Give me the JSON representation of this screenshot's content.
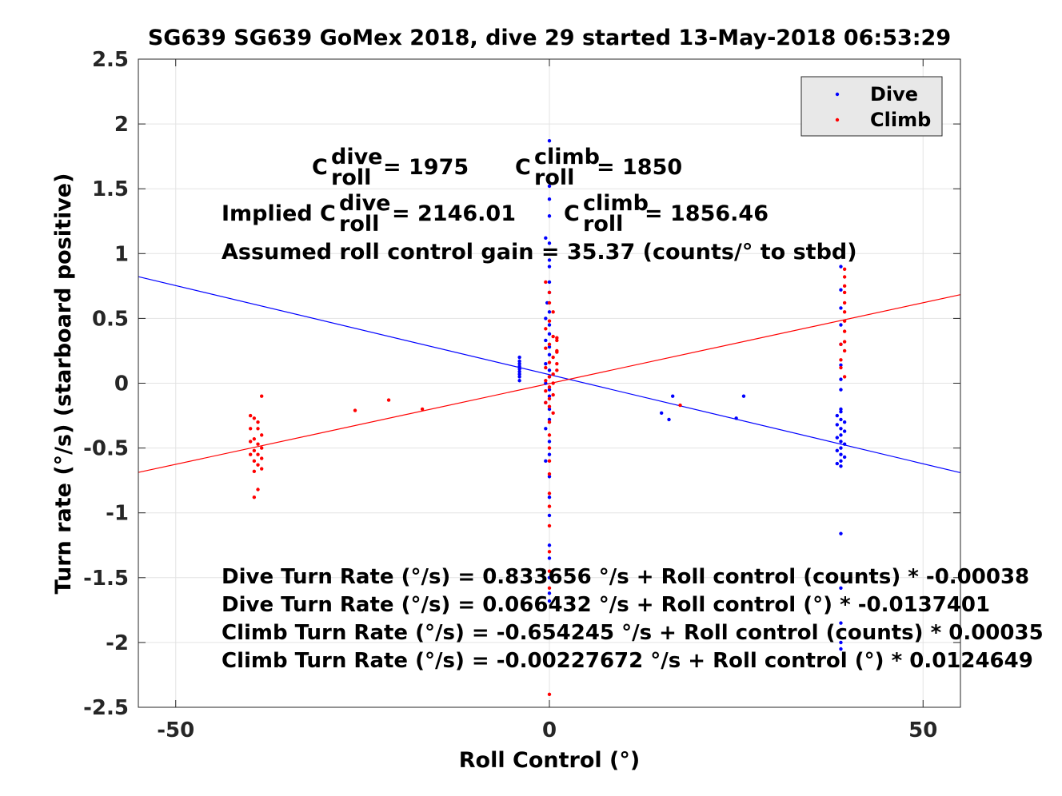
{
  "chart_data": {
    "type": "scatter",
    "title": "SG639 SG639 GoMex 2018, dive 29 started 13-May-2018 06:53:29",
    "xlabel": "Roll Control (°)",
    "ylabel": "Turn rate (°/s) (starboard positive)",
    "xlim": [
      -55,
      55
    ],
    "ylim": [
      -2.5,
      2.5
    ],
    "xticks": [
      -50,
      0,
      50
    ],
    "xtick_labels": [
      "-50",
      "0",
      "50"
    ],
    "yticks": [
      2.5,
      2,
      1.5,
      1,
      0.5,
      0,
      -0.5,
      -1,
      -1.5,
      -2,
      -2.5
    ],
    "ytick_labels": [
      "2.5",
      "2",
      "1.5",
      "1",
      "0.5",
      "0",
      "-0.5",
      "-1",
      "-1.5",
      "-2",
      "-2.5"
    ],
    "grid": true,
    "legend_location": "top-right",
    "series": [
      {
        "name": "Dive",
        "color": "#0000ff",
        "points": [
          [
            -4,
            0.2
          ],
          [
            -4,
            0.17
          ],
          [
            -4,
            0.15
          ],
          [
            -4,
            0.13
          ],
          [
            -4,
            0.11
          ],
          [
            -4,
            0.09
          ],
          [
            -4,
            0.07
          ],
          [
            -4,
            0.05
          ],
          [
            -4,
            0.02
          ],
          [
            0,
            1.87
          ],
          [
            0,
            1.52
          ],
          [
            0,
            1.42
          ],
          [
            0,
            1.29
          ],
          [
            -0.5,
            1.12
          ],
          [
            0,
            1.08
          ],
          [
            0,
            0.95
          ],
          [
            0,
            0.9
          ],
          [
            0,
            0.78
          ],
          [
            0,
            0.7
          ],
          [
            -0.3,
            0.62
          ],
          [
            0,
            0.55
          ],
          [
            -0.5,
            0.5
          ],
          [
            0,
            0.45
          ],
          [
            0,
            0.38
          ],
          [
            -0.5,
            0.33
          ],
          [
            0,
            0.28
          ],
          [
            0,
            0.22
          ],
          [
            -0.5,
            0.15
          ],
          [
            0,
            0.1
          ],
          [
            0,
            0.05
          ],
          [
            -0.5,
            0.0
          ],
          [
            0,
            -0.05
          ],
          [
            0,
            -0.1
          ],
          [
            -0.5,
            -0.15
          ],
          [
            0,
            -0.2
          ],
          [
            0,
            -0.28
          ],
          [
            -0.5,
            -0.35
          ],
          [
            0,
            -0.45
          ],
          [
            0,
            -0.55
          ],
          [
            -0.5,
            -0.6
          ],
          [
            0,
            -0.72
          ],
          [
            0,
            -0.88
          ],
          [
            0,
            -1.02
          ],
          [
            0,
            -1.25
          ],
          [
            0,
            -1.35
          ],
          [
            0,
            -1.5
          ],
          [
            0,
            -1.62
          ],
          [
            0,
            -1.68
          ],
          [
            15,
            -0.23
          ],
          [
            16,
            -0.28
          ],
          [
            16.5,
            -0.1
          ],
          [
            25,
            -0.27
          ],
          [
            26,
            -0.1
          ],
          [
            39,
            -0.2
          ],
          [
            39,
            -0.22
          ],
          [
            38.5,
            -0.25
          ],
          [
            39,
            -0.28
          ],
          [
            39.5,
            -0.3
          ],
          [
            38.5,
            -0.32
          ],
          [
            39,
            -0.35
          ],
          [
            39.5,
            -0.37
          ],
          [
            39,
            -0.4
          ],
          [
            38.5,
            -0.42
          ],
          [
            39,
            -0.45
          ],
          [
            39.5,
            -0.47
          ],
          [
            39,
            -0.5
          ],
          [
            38.5,
            -0.52
          ],
          [
            39,
            -0.55
          ],
          [
            39.5,
            -0.57
          ],
          [
            39,
            -0.6
          ],
          [
            38.5,
            -0.62
          ],
          [
            39,
            -0.64
          ],
          [
            39,
            0.9
          ],
          [
            39,
            0.72
          ],
          [
            39,
            0.58
          ],
          [
            39,
            0.45
          ],
          [
            39,
            0.3
          ],
          [
            39,
            0.14
          ],
          [
            39,
            0.03
          ],
          [
            39,
            -0.05
          ],
          [
            39,
            -1.16
          ],
          [
            39,
            -1.58
          ],
          [
            39,
            -1.85
          ],
          [
            39,
            -2.0
          ],
          [
            39,
            -2.05
          ]
        ]
      },
      {
        "name": "Climb",
        "color": "#ff0000",
        "points": [
          [
            -38.5,
            -0.1
          ],
          [
            -39,
            -0.3
          ],
          [
            -39.5,
            -0.27
          ],
          [
            -39,
            -0.35
          ],
          [
            -38.5,
            -0.4
          ],
          [
            -39.5,
            -0.43
          ],
          [
            -39,
            -0.47
          ],
          [
            -38.5,
            -0.5
          ],
          [
            -39.5,
            -0.52
          ],
          [
            -39,
            -0.55
          ],
          [
            -38.5,
            -0.58
          ],
          [
            -39.5,
            -0.6
          ],
          [
            -39,
            -0.63
          ],
          [
            -38.5,
            -0.66
          ],
          [
            -39.5,
            -0.68
          ],
          [
            -39,
            -0.82
          ],
          [
            -39.5,
            -0.88
          ],
          [
            -40,
            -0.25
          ],
          [
            -40,
            -0.35
          ],
          [
            -40,
            -0.45
          ],
          [
            -40,
            -0.55
          ],
          [
            -26,
            -0.21
          ],
          [
            -21.5,
            -0.13
          ],
          [
            -17,
            -0.2
          ],
          [
            -0.5,
            0.78
          ],
          [
            0,
            0.7
          ],
          [
            0,
            0.62
          ],
          [
            0.5,
            0.55
          ],
          [
            0,
            0.48
          ],
          [
            -0.5,
            0.42
          ],
          [
            0.5,
            0.36
          ],
          [
            1,
            0.33
          ],
          [
            0,
            0.3
          ],
          [
            -0.5,
            0.27
          ],
          [
            1,
            0.24
          ],
          [
            0.5,
            0.2
          ],
          [
            0,
            0.16
          ],
          [
            -0.5,
            0.12
          ],
          [
            1,
            0.1
          ],
          [
            0.5,
            0.07
          ],
          [
            0,
            0.05
          ],
          [
            -0.5,
            0.02
          ],
          [
            0.5,
            0.0
          ],
          [
            0,
            -0.03
          ],
          [
            -0.5,
            -0.06
          ],
          [
            0.5,
            -0.09
          ],
          [
            0,
            -0.12
          ],
          [
            -0.5,
            -0.15
          ],
          [
            0,
            -0.18
          ],
          [
            0.5,
            -0.23
          ],
          [
            0,
            -0.3
          ],
          [
            0,
            -0.4
          ],
          [
            0,
            -0.5
          ],
          [
            0,
            -0.6
          ],
          [
            0,
            -0.7
          ],
          [
            0,
            -0.85
          ],
          [
            0,
            -0.95
          ],
          [
            0,
            -1.1
          ],
          [
            0,
            -1.3
          ],
          [
            0,
            -1.45
          ],
          [
            0,
            -1.58
          ],
          [
            0,
            -2.4
          ],
          [
            1,
            0.35
          ],
          [
            1,
            0.25
          ],
          [
            1,
            0.15
          ],
          [
            17.5,
            -0.17
          ],
          [
            39.5,
            0.88
          ],
          [
            39.5,
            0.82
          ],
          [
            39.5,
            0.75
          ],
          [
            39.5,
            0.7
          ],
          [
            39.5,
            0.62
          ],
          [
            39.5,
            0.55
          ],
          [
            39.5,
            0.48
          ],
          [
            39.5,
            0.4
          ],
          [
            39.5,
            0.32
          ],
          [
            39.5,
            0.25
          ],
          [
            39,
            0.18
          ],
          [
            39,
            0.12
          ],
          [
            39.5,
            0.05
          ],
          [
            39,
            0.3
          ]
        ]
      },
      {
        "name": "",
        "type": "line",
        "color": "#0000ff",
        "x": [
          -55,
          55
        ],
        "y": [
          0.822,
          -0.69
        ]
      },
      {
        "name": "",
        "type": "line",
        "color": "#ff0000",
        "x": [
          -55,
          55
        ],
        "y": [
          -0.688,
          0.683
        ]
      }
    ],
    "annotations": {
      "c_roll_dive": "= 1975",
      "c_roll_climb": "= 1850",
      "implied_prefix": "Implied C",
      "implied_dive": "= 2146.01",
      "implied_climb": "= 1856.46",
      "gain": "Assumed roll control gain = 35.37 (counts/° to stbd)",
      "eq1": "Dive Turn Rate (°/s) = 0.833656 °/s + Roll control (counts) * -0.00038",
      "eq2": "Dive Turn Rate (°/s) = 0.066432 °/s + Roll control (°) * -0.0137401",
      "eq3": "Climb Turn Rate (°/s) = -0.654245 °/s + Roll control (counts) * 0.00035",
      "eq4": "Climb Turn Rate (°/s) = -0.00227672 °/s + Roll control (°) * 0.0124649"
    },
    "symbols": {
      "c": "C",
      "sup_dive": "dive",
      "sup_climb": "climb",
      "sub_roll": "roll"
    }
  }
}
